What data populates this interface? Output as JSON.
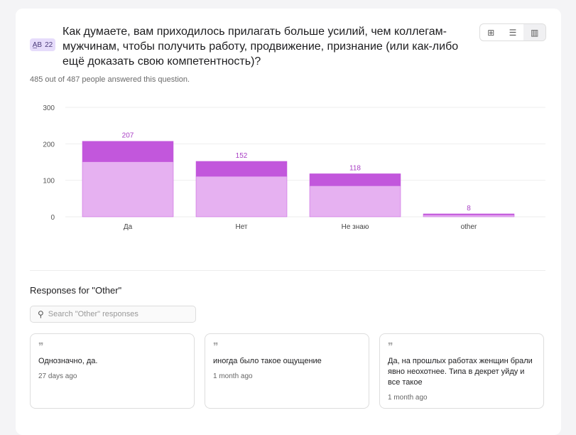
{
  "question": {
    "badge_number": "22",
    "badge_icon": "multiple-choice-icon",
    "title": "Как думаете, вам приходилось прилагать больше усилий, чем коллегам-мужчинам, чтобы получить работу, продвижение, признание (или как-либо ещё доказать свою компетентность)?",
    "answered": "485 out of 487 people answered this question."
  },
  "view_toggle": [
    "table-icon",
    "horizontal-bar-icon",
    "vertical-bar-icon"
  ],
  "chart_data": {
    "type": "bar",
    "categories": [
      "Да",
      "Нет",
      "Не знаю",
      "other"
    ],
    "values": [
      207,
      152,
      118,
      8
    ],
    "segments": [
      {
        "name": "lower",
        "values": [
          151,
          111,
          85,
          5
        ]
      },
      {
        "name": "upper",
        "values": [
          56,
          41,
          33,
          3
        ]
      }
    ],
    "yticks": [
      "0",
      "100",
      "200",
      "300"
    ],
    "ylim": [
      0,
      300
    ],
    "colors": {
      "lower": "#e6b1f1",
      "upper": "#c257dc",
      "label": "#a83ec4"
    }
  },
  "responses": {
    "heading": "Responses for \"Other\"",
    "search_placeholder": "Search \"Other\" responses",
    "items": [
      {
        "text": "Однозначно, да.",
        "date": "27 days ago"
      },
      {
        "text": "иногда было такое ощущение",
        "date": "1 month ago"
      },
      {
        "text": "Да, на прошлых работах женщин брали явно неохотнее. Типа в декрет уйду и все такое",
        "date": "1 month ago"
      }
    ]
  }
}
